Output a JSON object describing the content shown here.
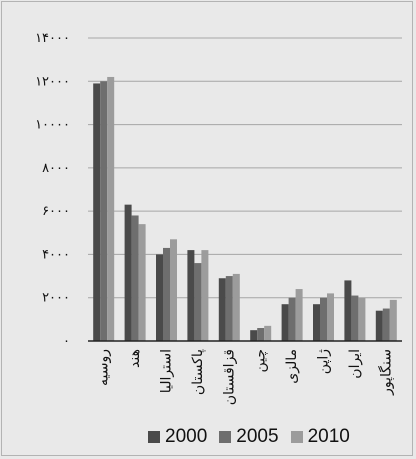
{
  "colors": {
    "background": "#e9e9e9",
    "grid": "#a6a6a6",
    "axis": "#222222",
    "text": "#111111",
    "series": [
      "#4a4a4a",
      "#6e6e6e",
      "#9c9c9c"
    ]
  },
  "chart_data": {
    "type": "bar",
    "title": "",
    "xlabel": "",
    "ylabel": "",
    "categories": [
      "روسیه",
      "هند",
      "استرالیا",
      "پاکستان",
      "قزاقستان",
      "چین",
      "مالزی",
      "ژاپن",
      "ایران",
      "سنگاپور"
    ],
    "series": [
      {
        "name": "2000",
        "values": [
          11900,
          6300,
          4000,
          4200,
          2900,
          500,
          1700,
          1700,
          2800,
          1400
        ]
      },
      {
        "name": "2005",
        "values": [
          12000,
          5800,
          4300,
          3600,
          3000,
          600,
          2000,
          2000,
          2100,
          1500
        ]
      },
      {
        "name": "2010",
        "values": [
          12200,
          5400,
          4700,
          4200,
          3100,
          700,
          2400,
          2200,
          2000,
          1900
        ]
      }
    ],
    "ylim": [
      0,
      14000
    ],
    "yticks": [
      0,
      2000,
      4000,
      6000,
      8000,
      10000,
      12000,
      14000
    ],
    "ytick_labels": [
      "۰",
      "۲۰۰۰",
      "۴۰۰۰",
      "۶۰۰۰",
      "۸۰۰۰",
      "۱۰۰۰۰",
      "۱۲۰۰۰",
      "۱۴۰۰۰"
    ],
    "grid": true,
    "legend": "bottom"
  }
}
